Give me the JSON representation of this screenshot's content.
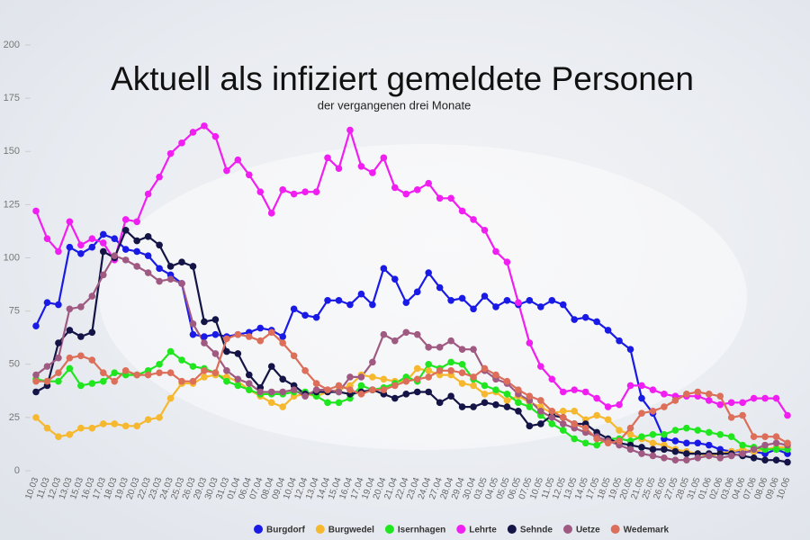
{
  "chart_data": {
    "type": "line",
    "title": "Aktuell als infiziert gemeldete Personen",
    "subtitle": "der vergangenen drei Monate",
    "categories": [
      "10.03",
      "11.03",
      "12.03",
      "13.03",
      "15.03",
      "16.03",
      "17.03",
      "18.03",
      "19.03",
      "20.03",
      "22.03",
      "23.03",
      "24.03",
      "25.03",
      "26.03",
      "29.03",
      "30.03",
      "31.03",
      "01.04",
      "06.04",
      "07.04",
      "08.04",
      "09.04",
      "10.04",
      "12.04",
      "13.04",
      "14.04",
      "15.04",
      "16.04",
      "17.04",
      "19.04",
      "20.04",
      "21.04",
      "22.04",
      "23.04",
      "24.04",
      "27.04",
      "28.04",
      "29.04",
      "30.04",
      "03.05",
      "04.05",
      "05.05",
      "06.05",
      "07.05",
      "10.05",
      "11.05",
      "12.05",
      "13.05",
      "14.05",
      "17.05",
      "18.05",
      "19.05",
      "20.05",
      "21.05",
      "25.05",
      "26.05",
      "27.05",
      "28.05",
      "31.05",
      "01.06",
      "02.06",
      "03.06",
      "04.06",
      "07.06",
      "08.06",
      "09.06",
      "10.06"
    ],
    "series": [
      {
        "name": "Burgdorf",
        "color": "#1a1ae6",
        "values": [
          68,
          79,
          78,
          105,
          102,
          105,
          111,
          109,
          104,
          103,
          101,
          95,
          92,
          88,
          64,
          63,
          64,
          63,
          64,
          65,
          67,
          66,
          63,
          76,
          73,
          72,
          80,
          80,
          78,
          83,
          78,
          95,
          90,
          79,
          84,
          93,
          86,
          80,
          81,
          76,
          82,
          77,
          80,
          78,
          80,
          77,
          80,
          78,
          71,
          72,
          70,
          66,
          61,
          57,
          34,
          27,
          15,
          14,
          13,
          13,
          12,
          10,
          9,
          9,
          9,
          8,
          10,
          8
        ]
      },
      {
        "name": "Burgwedel",
        "color": "#f5b82e",
        "values": [
          25,
          20,
          16,
          17,
          20,
          20,
          22,
          22,
          21,
          21,
          24,
          25,
          34,
          41,
          41,
          44,
          45,
          44,
          42,
          38,
          35,
          32,
          30,
          35,
          36,
          35,
          37,
          38,
          40,
          45,
          44,
          43,
          42,
          42,
          48,
          47,
          45,
          45,
          41,
          40,
          36,
          37,
          33,
          35,
          32,
          30,
          27,
          28,
          28,
          24,
          26,
          24,
          19,
          17,
          15,
          13,
          12,
          10,
          9,
          8,
          7,
          8,
          9,
          10,
          9,
          10,
          11,
          11
        ]
      },
      {
        "name": "Isernhagen",
        "color": "#1fe61f",
        "values": [
          43,
          42,
          42,
          48,
          40,
          41,
          42,
          46,
          45,
          45,
          47,
          50,
          56,
          52,
          49,
          48,
          46,
          42,
          40,
          38,
          36,
          36,
          36,
          37,
          37,
          35,
          32,
          32,
          34,
          40,
          38,
          39,
          41,
          44,
          42,
          50,
          48,
          51,
          50,
          43,
          40,
          38,
          36,
          32,
          30,
          26,
          22,
          19,
          15,
          13,
          12,
          15,
          15,
          14,
          16,
          17,
          17,
          19,
          20,
          19,
          18,
          17,
          16,
          12,
          11,
          10,
          10,
          10
        ]
      },
      {
        "name": "Lehrte",
        "color": "#f01ef0",
        "values": [
          122,
          109,
          103,
          117,
          106,
          109,
          107,
          99,
          118,
          117,
          130,
          138,
          149,
          154,
          159,
          162,
          157,
          141,
          146,
          139,
          131,
          121,
          132,
          130,
          131,
          131,
          147,
          142,
          160,
          143,
          140,
          147,
          133,
          130,
          132,
          135,
          128,
          128,
          122,
          118,
          113,
          103,
          98,
          79,
          60,
          49,
          43,
          37,
          38,
          37,
          34,
          30,
          31,
          40,
          40,
          38,
          36,
          35,
          35,
          35,
          33,
          31,
          32,
          32,
          34,
          34,
          34,
          26
        ]
      },
      {
        "name": "Sehnde",
        "color": "#141446",
        "values": [
          37,
          40,
          60,
          66,
          63,
          65,
          103,
          100,
          113,
          108,
          110,
          106,
          96,
          98,
          96,
          70,
          71,
          56,
          55,
          45,
          39,
          49,
          43,
          40,
          36,
          37,
          37,
          37,
          36,
          37,
          38,
          36,
          34,
          36,
          37,
          37,
          32,
          35,
          30,
          30,
          32,
          31,
          30,
          28,
          21,
          22,
          26,
          25,
          22,
          22,
          18,
          15,
          13,
          12,
          11,
          10,
          10,
          9,
          8,
          8,
          8,
          8,
          8,
          7,
          6,
          5,
          5,
          4
        ]
      },
      {
        "name": "Uetze",
        "color": "#a05a82",
        "values": [
          45,
          49,
          53,
          76,
          77,
          82,
          92,
          101,
          99,
          96,
          93,
          89,
          90,
          88,
          69,
          60,
          55,
          47,
          43,
          41,
          37,
          37,
          37,
          38,
          35,
          38,
          38,
          37,
          44,
          44,
          51,
          64,
          61,
          65,
          64,
          58,
          58,
          61,
          57,
          57,
          47,
          43,
          41,
          36,
          33,
          28,
          25,
          22,
          20,
          18,
          16,
          14,
          12,
          10,
          8,
          7,
          6,
          5,
          5,
          6,
          7,
          6,
          7,
          8,
          10,
          12,
          13,
          12
        ]
      },
      {
        "name": "Wedemark",
        "color": "#dc6e5a",
        "values": [
          42,
          42,
          46,
          53,
          54,
          52,
          46,
          42,
          47,
          45,
          45,
          46,
          46,
          42,
          42,
          47,
          46,
          62,
          64,
          63,
          61,
          65,
          60,
          54,
          47,
          41,
          38,
          40,
          38,
          36,
          38,
          38,
          40,
          42,
          43,
          44,
          47,
          47,
          46,
          44,
          48,
          45,
          42,
          38,
          35,
          33,
          28,
          25,
          22,
          20,
          15,
          13,
          14,
          20,
          27,
          28,
          30,
          33,
          36,
          37,
          36,
          35,
          25,
          26,
          16,
          16,
          16,
          13
        ]
      }
    ],
    "ylim": [
      0,
      200
    ],
    "yticks": [
      0,
      25,
      50,
      75,
      100,
      125,
      150,
      175,
      200
    ]
  }
}
